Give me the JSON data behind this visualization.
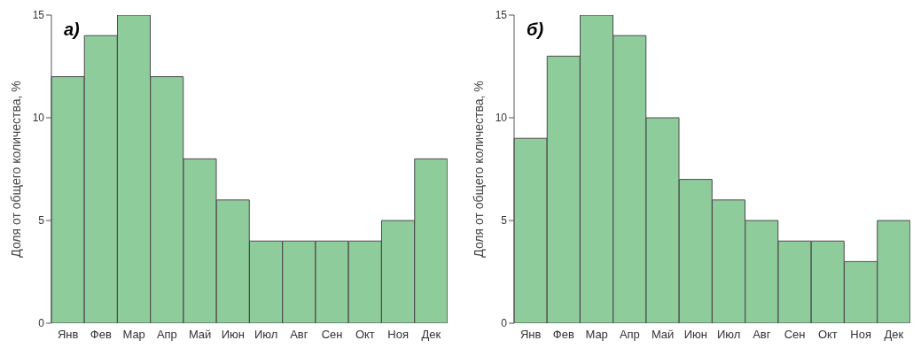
{
  "chart_data": [
    {
      "type": "bar",
      "title": "а)",
      "ylabel": "Доля от общего количества, %",
      "categories": [
        "Янв",
        "Фев",
        "Мар",
        "Апр",
        "Май",
        "Июн",
        "Июл",
        "Авг",
        "Сен",
        "Окт",
        "Ноя",
        "Дек"
      ],
      "values": [
        12,
        14,
        15,
        12,
        8,
        6,
        4,
        4,
        4,
        4,
        5,
        8
      ],
      "color": "#8fcc9c",
      "ylim": [
        0,
        15
      ],
      "yticks": [
        0,
        5,
        10,
        15
      ],
      "grid": false
    },
    {
      "type": "bar",
      "title": "б)",
      "ylabel": "Доля от общего количества, %",
      "categories": [
        "Янв",
        "Фев",
        "Мар",
        "Апр",
        "Май",
        "Июн",
        "Июл",
        "Авг",
        "Сен",
        "Окт",
        "Ноя",
        "Дек"
      ],
      "values": [
        9,
        13,
        15,
        14,
        10,
        7,
        6,
        5,
        4,
        4,
        3,
        5
      ],
      "color": "#8fcc9c",
      "ylim": [
        0,
        15
      ],
      "yticks": [
        0,
        5,
        10,
        15
      ],
      "grid": false
    }
  ]
}
